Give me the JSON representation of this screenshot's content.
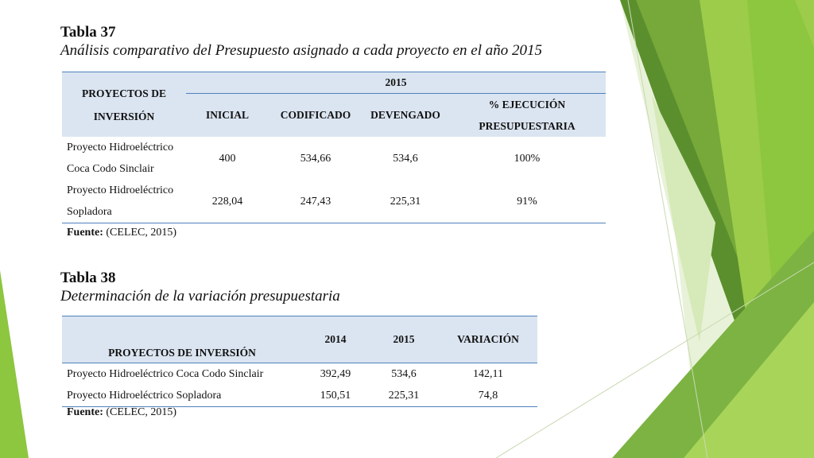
{
  "table37": {
    "caption_number": "Tabla 37",
    "caption_title": "Análisis comparativo del Presupuesto asignado a cada proyecto en el año 2015",
    "header_project": "PROYECTOS DE INVERSIÓN",
    "header_year": "2015",
    "subheaders": [
      "INICIAL",
      "CODIFICADO",
      "DEVENGADO",
      "% EJECUCIÓN PRESUPUESTARIA"
    ],
    "rows": [
      {
        "project": "Proyecto Hidroeléctrico Coca Codo Sinclair",
        "inicial": "400",
        "codificado": "534,66",
        "devengado": "534,6",
        "ejecucion": "100%"
      },
      {
        "project": "Proyecto Hidroeléctrico Sopladora",
        "inicial": "228,04",
        "codificado": "247,43",
        "devengado": "225,31",
        "ejecucion": "91%"
      }
    ],
    "source_label": "Fuente:",
    "source_value": "(CELEC, 2015)"
  },
  "table38": {
    "caption_number": "Tabla 38",
    "caption_title": "Determinación de la variación presupuestaria",
    "headers": [
      "PROYECTOS DE INVERSIÓN",
      "2014",
      "2015",
      "VARIACIÓN"
    ],
    "rows": [
      {
        "project": "Proyecto Hidroeléctrico Coca Codo Sinclair",
        "y2014": "392,49",
        "y2015": "534,6",
        "variacion": "142,11"
      },
      {
        "project": "Proyecto Hidroeléctrico Sopladora",
        "y2014": "150,51",
        "y2015": "225,31",
        "variacion": "74,8"
      }
    ],
    "source_label": "Fuente:",
    "source_value": "(CELEC, 2015)"
  },
  "theme": {
    "accent_dark": "#5b8f2d",
    "accent_light": "#8dc63f",
    "header_fill": "#dbe5f1",
    "rule": "#4f81bd"
  }
}
